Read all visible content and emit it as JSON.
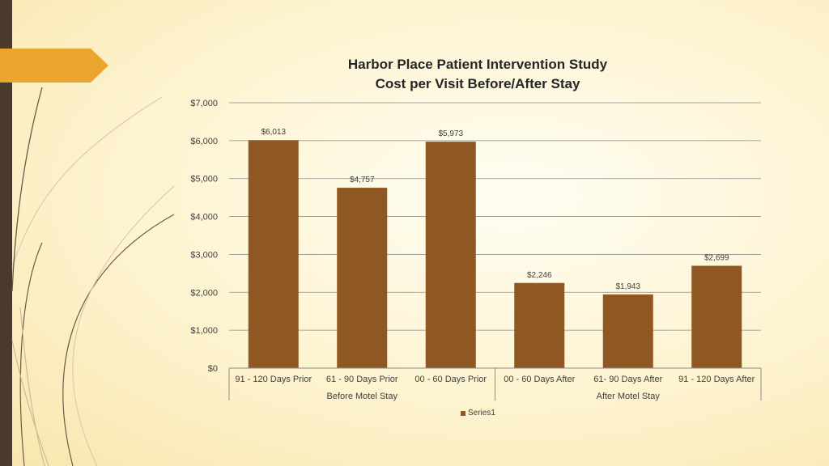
{
  "chart_data": {
    "type": "bar",
    "title": "Harbor Place Patient Intervention Study",
    "subtitle": "Cost per Visit Before/After Stay",
    "categories": [
      "91 - 120 Days Prior",
      "61 - 90 Days Prior",
      "00 - 60 Days Prior",
      "00 - 60 Days After",
      "61- 90 Days After",
      "91 - 120 Days After"
    ],
    "groups": [
      {
        "label": "Before Motel Stay",
        "count": 3
      },
      {
        "label": "After Motel Stay",
        "count": 3
      }
    ],
    "series": [
      {
        "name": "Series1",
        "values": [
          6013,
          4757,
          5973,
          2246,
          1943,
          2699
        ]
      }
    ],
    "data_labels": [
      "$6,013",
      "$4,757",
      "$5,973",
      "$2,246",
      "$1,943",
      "$2,699"
    ],
    "ylim": [
      0,
      7000
    ],
    "yticks": [
      0,
      1000,
      2000,
      3000,
      4000,
      5000,
      6000,
      7000
    ],
    "ytick_labels": [
      "$0",
      "$1,000",
      "$2,000",
      "$3,000",
      "$4,000",
      "$5,000",
      "$6,000",
      "$7,000"
    ],
    "grid": true,
    "legend_position": "bottom",
    "bar_color": "#8f5721"
  }
}
